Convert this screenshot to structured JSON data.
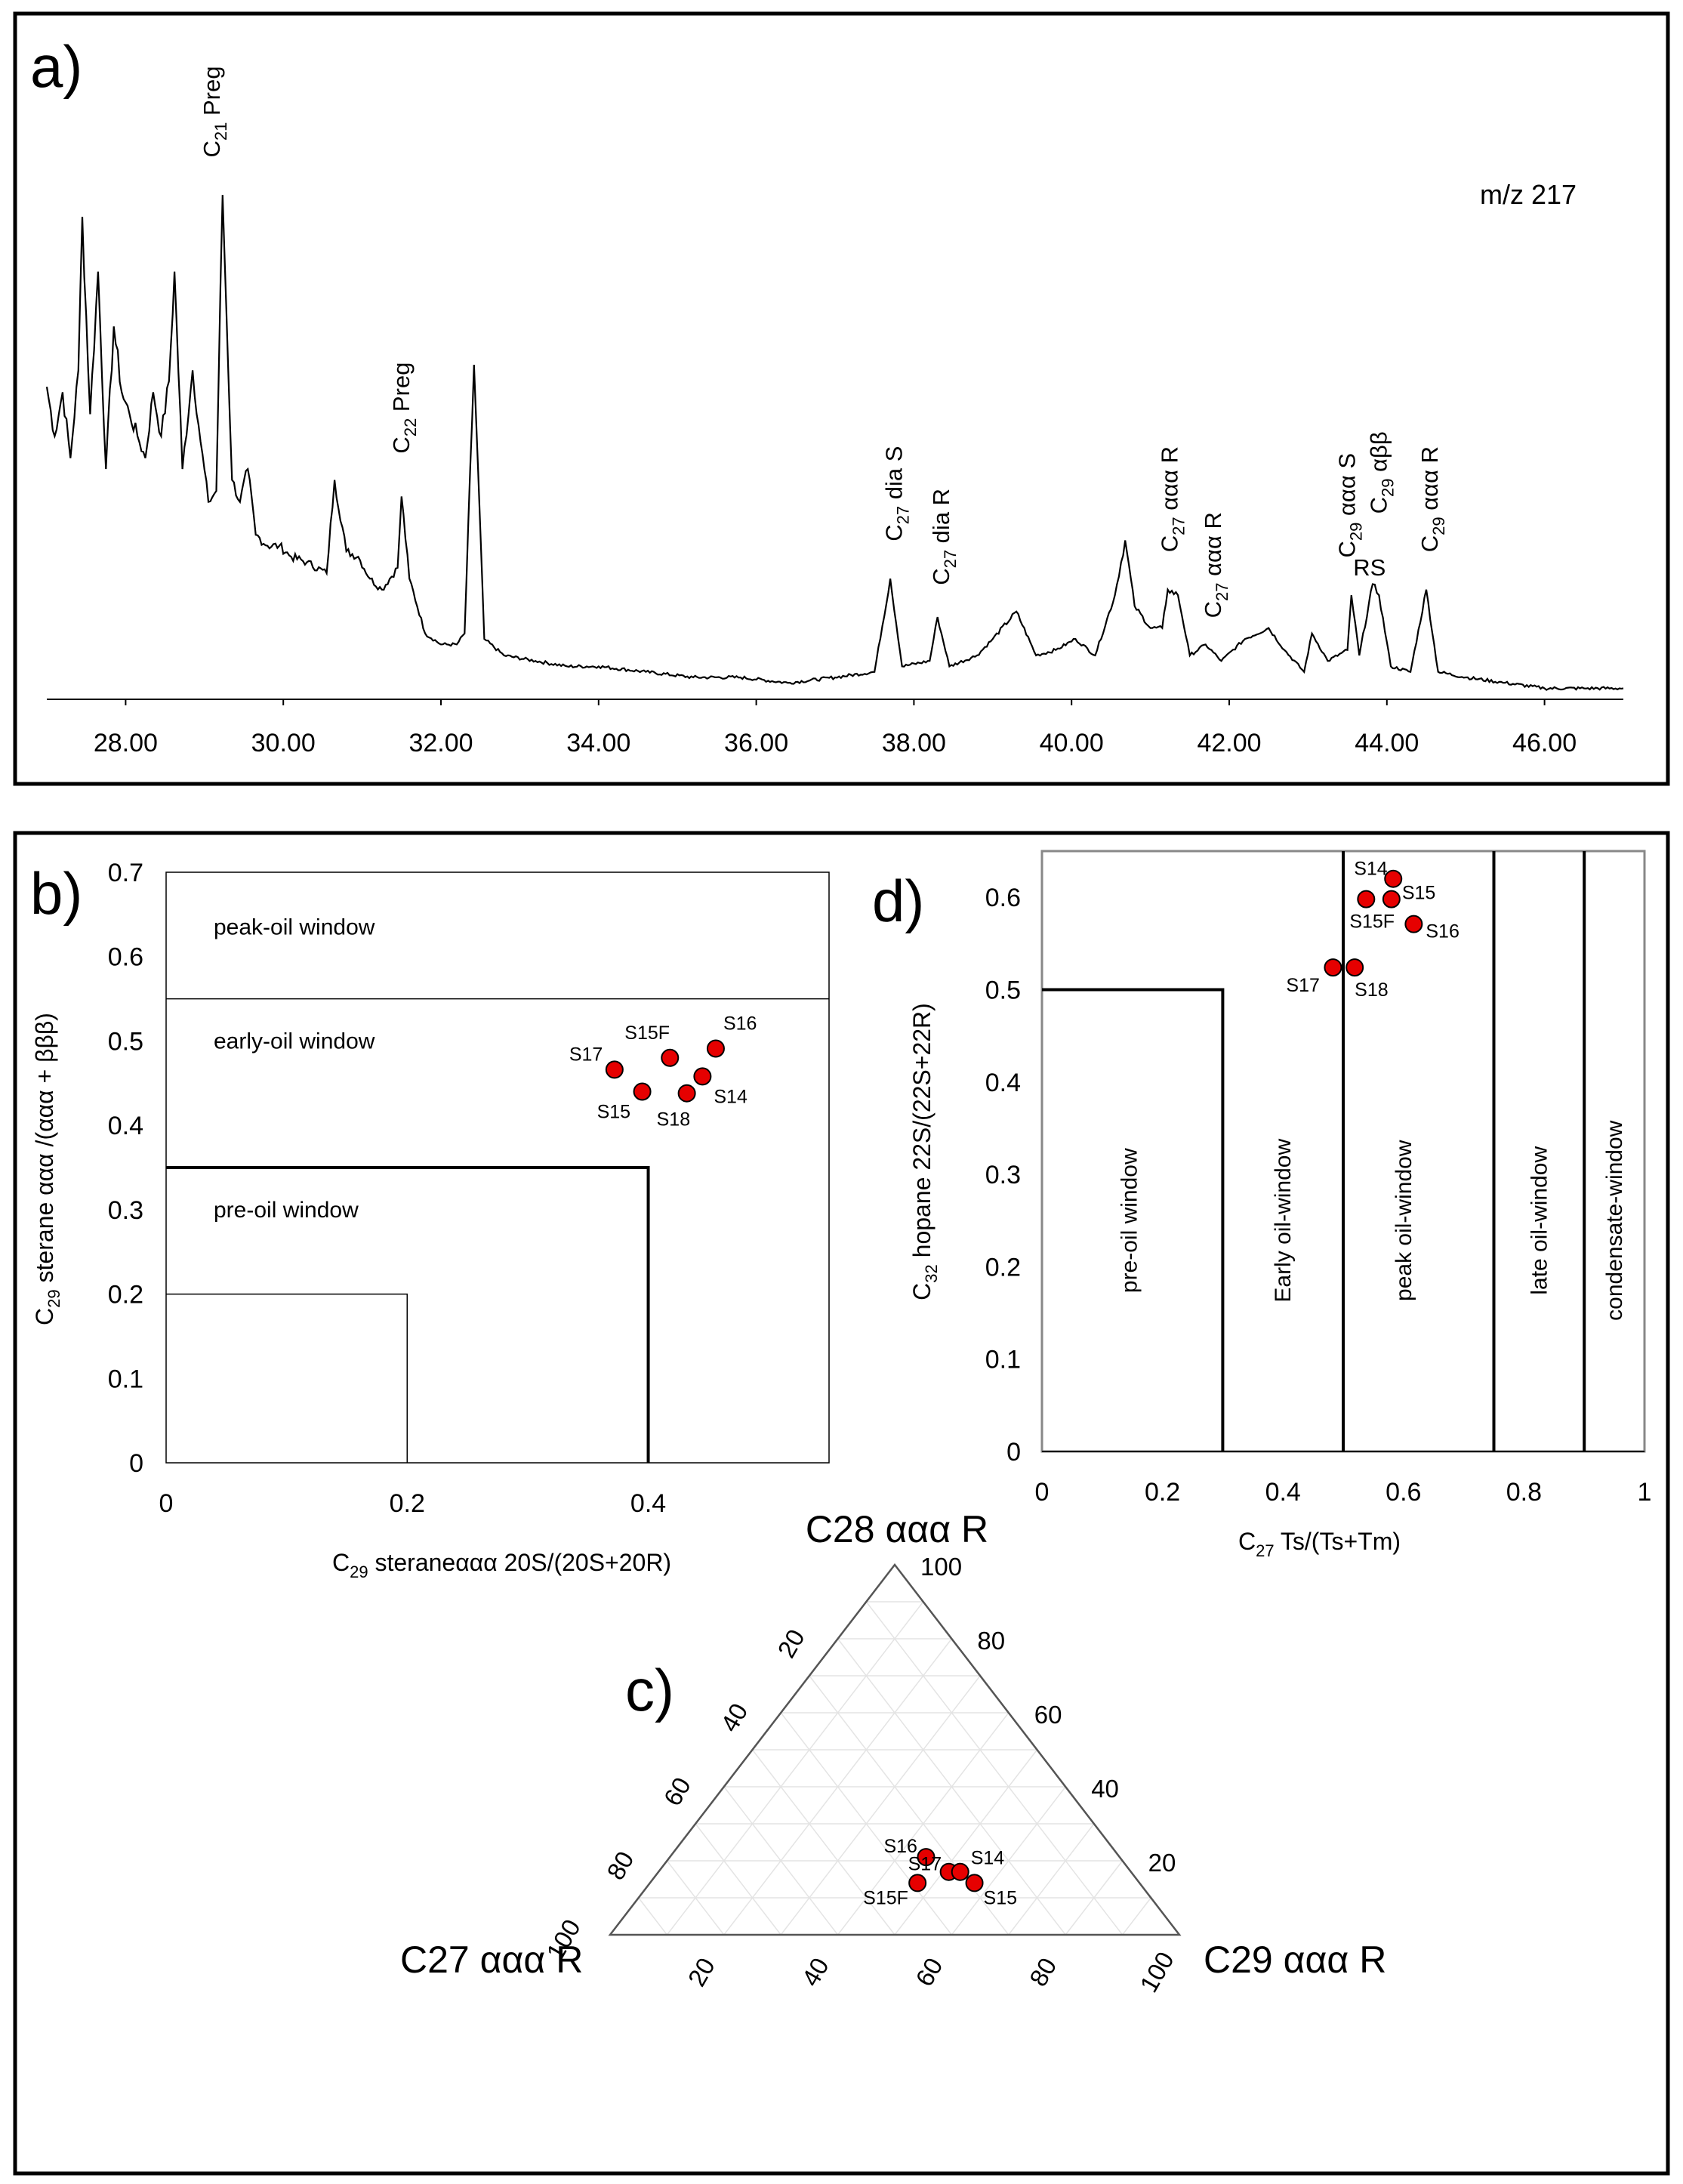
{
  "panel_a": {
    "letter": "a)",
    "mz_label": "m/z 217",
    "chart_data": {
      "type": "line",
      "title": "m/z 217",
      "xlabel": "",
      "ylabel": "",
      "xlim": [
        27.0,
        47.0
      ],
      "ylim": [
        0,
        100
      ],
      "x_ticks": [
        "28.00",
        "30.00",
        "32.00",
        "34.00",
        "36.00",
        "38.00",
        "40.00",
        "42.00",
        "44.00",
        "46.00"
      ],
      "trace_anchors": [
        [
          27.0,
          57
        ],
        [
          27.1,
          48
        ],
        [
          27.2,
          56
        ],
        [
          27.3,
          44
        ],
        [
          27.4,
          60
        ],
        [
          27.45,
          88
        ],
        [
          27.55,
          52
        ],
        [
          27.65,
          78
        ],
        [
          27.75,
          42
        ],
        [
          27.85,
          68
        ],
        [
          27.95,
          56
        ],
        [
          28.05,
          52
        ],
        [
          28.15,
          48
        ],
        [
          28.25,
          44
        ],
        [
          28.35,
          56
        ],
        [
          28.45,
          48
        ],
        [
          28.55,
          58
        ],
        [
          28.62,
          78
        ],
        [
          28.72,
          42
        ],
        [
          28.85,
          60
        ],
        [
          28.95,
          47
        ],
        [
          29.05,
          36
        ],
        [
          29.15,
          38
        ],
        [
          29.23,
          92
        ],
        [
          29.35,
          40
        ],
        [
          29.45,
          36
        ],
        [
          29.55,
          42
        ],
        [
          29.65,
          30
        ],
        [
          29.8,
          28
        ],
        [
          29.95,
          28
        ],
        [
          30.1,
          26
        ],
        [
          30.3,
          25
        ],
        [
          30.55,
          23
        ],
        [
          30.65,
          40
        ],
        [
          30.8,
          27
        ],
        [
          30.95,
          26
        ],
        [
          31.1,
          22
        ],
        [
          31.25,
          20
        ],
        [
          31.45,
          24
        ],
        [
          31.5,
          37
        ],
        [
          31.6,
          22
        ],
        [
          31.8,
          12
        ],
        [
          32.0,
          10
        ],
        [
          32.2,
          10
        ],
        [
          32.3,
          12
        ],
        [
          32.42,
          61
        ],
        [
          32.55,
          11
        ],
        [
          32.8,
          8
        ],
        [
          33.2,
          7
        ],
        [
          33.6,
          6
        ],
        [
          34.0,
          6
        ],
        [
          34.6,
          5
        ],
        [
          35.2,
          4
        ],
        [
          35.8,
          4
        ],
        [
          36.4,
          3
        ],
        [
          37.0,
          4
        ],
        [
          37.5,
          5
        ],
        [
          37.7,
          22
        ],
        [
          37.85,
          6
        ],
        [
          38.2,
          7
        ],
        [
          38.3,
          15
        ],
        [
          38.45,
          6
        ],
        [
          38.8,
          8
        ],
        [
          39.0,
          11
        ],
        [
          39.3,
          16
        ],
        [
          39.55,
          8
        ],
        [
          39.8,
          9
        ],
        [
          40.05,
          11
        ],
        [
          40.3,
          8
        ],
        [
          40.55,
          19
        ],
        [
          40.68,
          29
        ],
        [
          40.8,
          17
        ],
        [
          41.0,
          13
        ],
        [
          41.15,
          13
        ],
        [
          41.22,
          20
        ],
        [
          41.35,
          19
        ],
        [
          41.5,
          8
        ],
        [
          41.7,
          10
        ],
        [
          41.9,
          7
        ],
        [
          42.2,
          11
        ],
        [
          42.5,
          13
        ],
        [
          42.7,
          9
        ],
        [
          42.95,
          5
        ],
        [
          43.05,
          12
        ],
        [
          43.25,
          7
        ],
        [
          43.5,
          9
        ],
        [
          43.55,
          19
        ],
        [
          43.65,
          8
        ],
        [
          43.82,
          21
        ],
        [
          43.9,
          19
        ],
        [
          44.05,
          6
        ],
        [
          44.3,
          5
        ],
        [
          44.5,
          20
        ],
        [
          44.65,
          5
        ],
        [
          45.0,
          4
        ],
        [
          45.5,
          3
        ],
        [
          46.0,
          2
        ],
        [
          46.5,
          2
        ],
        [
          47.0,
          2
        ]
      ],
      "peak_labels": [
        {
          "base": "C",
          "sub": "21",
          "rest": " Preg",
          "x": 29.1,
          "y": 98
        },
        {
          "base": "C",
          "sub": "22",
          "rest": " Preg",
          "x": 31.5,
          "y": 44
        },
        {
          "base": "C",
          "sub": "27",
          "rest": " dia S",
          "x": 37.75,
          "y": 28
        },
        {
          "base": "C",
          "sub": "27",
          "rest": " dia R",
          "x": 38.35,
          "y": 20
        },
        {
          "base": "C",
          "sub": "27",
          "rest": " ααα R",
          "x": 41.25,
          "y": 26
        },
        {
          "base": "C",
          "sub": "27",
          "rest": " ααα R",
          "x": 41.8,
          "y": 14
        },
        {
          "base": "C",
          "sub": "29",
          "rest": " ααα S",
          "x": 43.5,
          "y": 25
        },
        {
          "base": "C",
          "sub": "29",
          "rest": " αββ",
          "x": 43.9,
          "y": 33
        },
        {
          "base": "C",
          "sub": "29",
          "rest": " ααα R",
          "x": 44.55,
          "y": 26
        }
      ],
      "rs_label": "RS"
    }
  },
  "panel_b": {
    "letter": "b)",
    "chart_data": {
      "type": "scatter",
      "xlabel": {
        "base": "C",
        "sub": "29",
        "rest": " steraneααα  20S/(20S+20R)"
      },
      "ylabel": {
        "base": "C",
        "sub": "29",
        "rest": " sterane ααα /(ααα + βββ)"
      },
      "xlim": [
        0,
        0.55
      ],
      "ylim": [
        0,
        0.7
      ],
      "x_ticks": [
        "0",
        "0.2",
        "0.4"
      ],
      "y_ticks": [
        "0",
        "0.1",
        "0.2",
        "0.3",
        "0.4",
        "0.5",
        "0.6",
        "0.7"
      ],
      "zones": [
        "peak-oil window",
        "early-oil window",
        "pre-oil window"
      ],
      "points": [
        {
          "label": "S17",
          "x": 0.372,
          "y": 0.466
        },
        {
          "label": "S15F",
          "x": 0.418,
          "y": 0.48
        },
        {
          "label": "S16",
          "x": 0.456,
          "y": 0.491
        },
        {
          "label": "S15",
          "x": 0.395,
          "y": 0.44
        },
        {
          "label": "S18",
          "x": 0.432,
          "y": 0.438
        },
        {
          "label": "S14",
          "x": 0.445,
          "y": 0.458
        }
      ]
    }
  },
  "panel_d": {
    "letter": "d)",
    "chart_data": {
      "type": "scatter",
      "xlabel": {
        "base": "C",
        "sub": "27",
        "rest": " Ts/(Ts+Tm)"
      },
      "ylabel": {
        "base": "C",
        "sub": "32",
        "rest": " hopane 22S/(22S+22R)"
      },
      "xlim": [
        0,
        1
      ],
      "ylim": [
        0,
        0.65
      ],
      "x_ticks": [
        "0",
        "0.2",
        "0.4",
        "0.6",
        "0.8",
        "1"
      ],
      "y_ticks": [
        "0",
        "0.1",
        "0.2",
        "0.3",
        "0.4",
        "0.5",
        "0.6"
      ],
      "zones": [
        "pre-oil window",
        "Early oil-window",
        "peak oil-window",
        "late oil-window",
        "condensate-window"
      ],
      "points": [
        {
          "label": "S14",
          "x": 0.583,
          "y": 0.62
        },
        {
          "label": "S15",
          "x": 0.58,
          "y": 0.598
        },
        {
          "label": "S15F",
          "x": 0.538,
          "y": 0.598
        },
        {
          "label": "S16",
          "x": 0.617,
          "y": 0.571
        },
        {
          "label": "S17",
          "x": 0.483,
          "y": 0.524
        },
        {
          "label": "S18",
          "x": 0.519,
          "y": 0.524
        }
      ]
    }
  },
  "panel_c": {
    "letter": "c)",
    "chart_data": {
      "type": "ternary",
      "corners": {
        "top": "C28 ααα R",
        "left": "C27 ααα R",
        "right": "C29 ααα R"
      },
      "left_edge_ticks": [
        "20",
        "40",
        "60",
        "80",
        "100"
      ],
      "right_edge_ticks": [
        "100",
        "80",
        "60",
        "40",
        "20"
      ],
      "bottom_edge_ticks": [
        "20",
        "40",
        "60",
        "80",
        "100"
      ],
      "points": [
        {
          "label": "S16",
          "c27": 34,
          "c28": 21,
          "c29": 45
        },
        {
          "label": "S17",
          "c27": 32,
          "c28": 17,
          "c29": 51
        },
        {
          "label": "S14",
          "c27": 30,
          "c28": 17,
          "c29": 53
        },
        {
          "label": "S15",
          "c27": 29,
          "c28": 14,
          "c29": 57
        },
        {
          "label": "S15F",
          "c27": 39,
          "c28": 14,
          "c29": 47
        }
      ]
    }
  }
}
